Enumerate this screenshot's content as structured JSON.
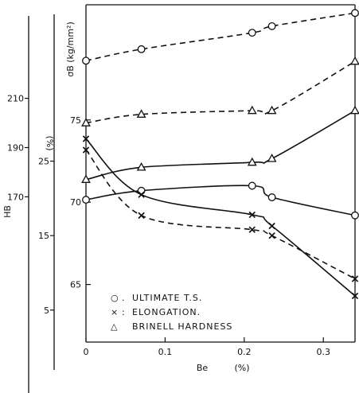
{
  "chart_data": {
    "type": "line",
    "title": "",
    "xlabel": "Be",
    "xunit": "(%)",
    "xlim": [
      0,
      0.34
    ],
    "x_ticks": [
      "0",
      "0.1",
      "0.2",
      "0.3"
    ],
    "x_tick_values": [
      0,
      0.1,
      0.2,
      0.3
    ],
    "y_axes": [
      {
        "id": "sigma",
        "label": "σB (kg/mm²)",
        "ticks": [
          "75",
          "70",
          "65"
        ],
        "tick_values": [
          75,
          70,
          65
        ],
        "range": [
          61.5,
          82.0
        ]
      },
      {
        "id": "elong",
        "label": "(%)",
        "ticks": [
          "25",
          "15",
          "5"
        ],
        "tick_values": [
          25,
          15,
          5
        ],
        "range": [
          0.7,
          46.0
        ]
      },
      {
        "id": "hb",
        "label": "HB",
        "ticks": [
          "210",
          "190",
          "170"
        ],
        "tick_values": [
          210,
          190,
          170
        ],
        "range": [
          111,
          248
        ]
      }
    ],
    "legend": {
      "placement": "bottom-left",
      "entries": [
        {
          "marker": "○",
          "sep": ".",
          "label": "ULTIMATE T.S.",
          "series_id": "uts"
        },
        {
          "marker": "×",
          "sep": ":",
          "label": "ELONGATION.",
          "series_id": "elongation"
        },
        {
          "marker": "△",
          "sep": "",
          "label": "BRINELL HARDNESS",
          "series_id": "brinell"
        }
      ]
    },
    "series": [
      {
        "id": "uts",
        "axis": "sigma",
        "marker": "circle",
        "style": "solid",
        "x": [
          0.0,
          0.07,
          0.21,
          0.235,
          0.34
        ],
        "y": [
          70.15,
          70.7,
          71.0,
          70.3,
          69.2
        ]
      },
      {
        "id": "uts_b",
        "axis": "sigma",
        "marker": "circle",
        "style": "dashed",
        "x": [
          0.0,
          0.07,
          0.21,
          0.235,
          0.34
        ],
        "y": [
          78.6,
          79.3,
          80.3,
          80.7,
          81.5
        ]
      },
      {
        "id": "elongation",
        "axis": "elong",
        "marker": "x",
        "style": "solid",
        "x": [
          0.0,
          0.07,
          0.21,
          0.235,
          0.34
        ],
        "y": [
          28.0,
          20.5,
          17.8,
          16.3,
          6.9
        ]
      },
      {
        "id": "elongation_b",
        "axis": "elong",
        "marker": "x",
        "style": "dashed",
        "x": [
          0.0,
          0.07,
          0.21,
          0.235,
          0.34
        ],
        "y": [
          26.5,
          17.7,
          15.8,
          15.0,
          9.2
        ]
      },
      {
        "id": "brinell",
        "axis": "hb",
        "marker": "triangle",
        "style": "solid",
        "x": [
          0.0,
          0.07,
          0.21,
          0.235,
          0.34
        ],
        "y": [
          177,
          182,
          184,
          185.5,
          205
        ]
      },
      {
        "id": "brinell_b",
        "axis": "hb",
        "marker": "triangle",
        "style": "dashed",
        "x": [
          0.0,
          0.07,
          0.21,
          0.235,
          0.34
        ],
        "y": [
          200,
          203.5,
          205,
          205,
          225
        ]
      }
    ],
    "grid": false
  }
}
